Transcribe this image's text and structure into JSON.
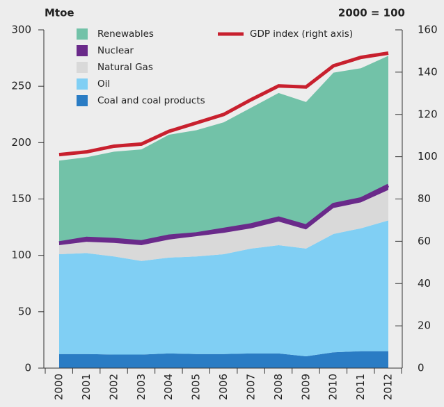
{
  "chart_data": {
    "type": "stacked_area",
    "y_label": "Mtoe",
    "y2_label": "2000 = 100",
    "categories": [
      "2000",
      "2001",
      "2002",
      "2003",
      "2004",
      "2005",
      "2006",
      "2007",
      "2008",
      "2009",
      "2010",
      "2011",
      "2012"
    ],
    "series": [
      {
        "name": "Coal and coal products",
        "color": "#2a7cc4",
        "values": [
          12.5,
          12.5,
          12,
          12,
          13,
          12.5,
          12.5,
          13,
          13,
          10.5,
          14,
          15,
          15
        ]
      },
      {
        "name": "Oil",
        "color": "#80cff4",
        "values": [
          88.5,
          89.5,
          87,
          83,
          85,
          86.5,
          88.5,
          93,
          96,
          95.5,
          105,
          109,
          116
        ]
      },
      {
        "name": "Natural Gas",
        "color": "#d9d9d9",
        "values": [
          8,
          10,
          12,
          14,
          16,
          18,
          19,
          18,
          21,
          17,
          23,
          23,
          27
        ]
      },
      {
        "name": "Nuclear",
        "color": "#6a2a8a",
        "values": [
          2,
          3,
          3,
          3,
          3,
          2,
          3,
          3,
          3,
          3,
          3,
          3,
          4
        ]
      },
      {
        "name": "Renewables",
        "color": "#72c2a8",
        "values": [
          73,
          72,
          78,
          82,
          90,
          92,
          95,
          104,
          111,
          110,
          117,
          116,
          115
        ]
      },
      {
        "name": "GDP index (right axis)",
        "color": "#c8202e",
        "axis": "y2",
        "values": [
          100,
          101.3,
          104,
          105,
          111,
          115,
          119,
          126,
          132.5,
          132,
          142,
          146,
          148
        ]
      }
    ],
    "ylim": [
      0,
      300
    ],
    "yticks": [
      0,
      50,
      100,
      150,
      200,
      250,
      300
    ],
    "y2lim": [
      0,
      160
    ],
    "y2ticks": [
      0,
      20,
      40,
      60,
      80,
      100,
      120,
      140,
      160
    ]
  }
}
